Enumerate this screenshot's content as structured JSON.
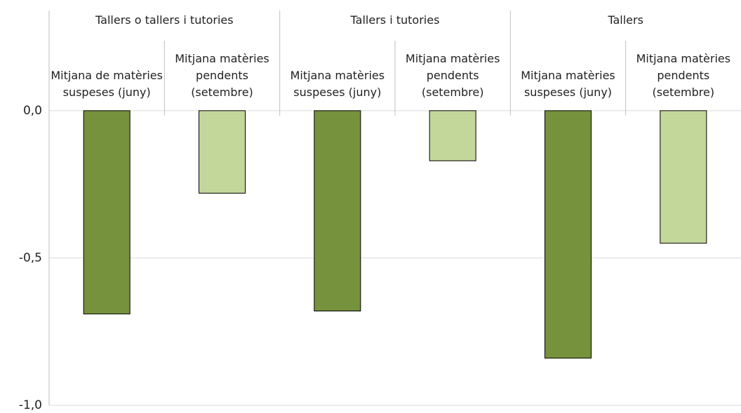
{
  "chart_data": {
    "type": "bar",
    "groups": [
      {
        "name": "Tallers o tallers i tutories",
        "size": 2
      },
      {
        "name": "Tallers i tutories",
        "size": 2
      },
      {
        "name": "Tallers",
        "size": 2
      }
    ],
    "categories": [
      "Mitjana de matèries suspeses (juny)",
      "Mitjana matèries pendents (setembre)",
      "Mitjana matèries suspeses (juny)",
      "Mitjana matèries pendents (setembre)",
      "Mitjana matèries suspeses (juny)",
      "Mitjana matèries pendents (setembre)"
    ],
    "values": [
      -0.69,
      -0.28,
      -0.68,
      -0.17,
      -0.84,
      -0.45
    ],
    "colors": [
      "#76923c",
      "#c4d79b",
      "#76923c",
      "#c4d79b",
      "#76923c",
      "#c4d79b"
    ],
    "ylim": [
      -1.0,
      0.34
    ],
    "yticks": [
      {
        "value": -1.0,
        "label": "-1,0"
      },
      {
        "value": -0.5,
        "label": "-0,5"
      },
      {
        "value": 0,
        "label": "0,0"
      }
    ],
    "grid": true
  }
}
